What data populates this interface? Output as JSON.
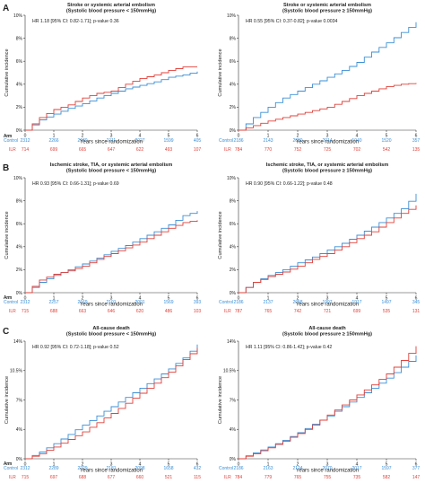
{
  "colors": {
    "control": "#3b8fd6",
    "ilr": "#e0413a",
    "axis": "#333333",
    "text": "#222222"
  },
  "chart_data": [
    {
      "type": "line",
      "panel_letter": "A",
      "title": "Stroke or systemic arterial embolism",
      "subtitle": "(Systolic blood pressure < 150mmHg)",
      "annotation": "HR 1.18 [95% CI: 0.82-1.71]; p-value 0.36",
      "xlabel": "Years since randomization",
      "ylabel": "Cumulative incidence",
      "xlim": [
        0,
        6
      ],
      "ylim": [
        0,
        10
      ],
      "xticks": [
        "0",
        "1",
        "2",
        "3",
        "4",
        "5",
        "6"
      ],
      "yticks": [
        "0%",
        "2%",
        "4%",
        "6%",
        "8%",
        "10%"
      ],
      "risk_table": {
        "header": "Arm",
        "times": [
          0,
          1,
          2,
          3,
          4,
          5,
          6
        ],
        "rows": [
          {
            "label": "Control",
            "values": [
              "2312",
              "2266",
              "2180",
              "2111",
              "2027",
              "1599",
              "405"
            ]
          },
          {
            "label": "ILR",
            "values": [
              "714",
              "699",
              "665",
              "647",
              "622",
              "493",
              "107"
            ]
          }
        ]
      },
      "series": [
        {
          "key": "Control",
          "values": [
            [
              0,
              0
            ],
            [
              0.5,
              0.9
            ],
            [
              1,
              1.4
            ],
            [
              1.5,
              1.9
            ],
            [
              2,
              2.3
            ],
            [
              2.5,
              2.8
            ],
            [
              3,
              3.2
            ],
            [
              3.5,
              3.6
            ],
            [
              4,
              3.9
            ],
            [
              4.5,
              4.2
            ],
            [
              5,
              4.6
            ],
            [
              5.5,
              4.8
            ],
            [
              6,
              5.1
            ]
          ]
        },
        {
          "key": "ILR",
          "values": [
            [
              0,
              0
            ],
            [
              0.5,
              1.1
            ],
            [
              1,
              1.8
            ],
            [
              1.5,
              2.2
            ],
            [
              2,
              2.8
            ],
            [
              2.5,
              3.2
            ],
            [
              3,
              3.4
            ],
            [
              3.5,
              4
            ],
            [
              4,
              4.5
            ],
            [
              4.5,
              4.8
            ],
            [
              5,
              5.2
            ],
            [
              5.5,
              5.5
            ],
            [
              6,
              5.5
            ]
          ]
        }
      ]
    },
    {
      "type": "line",
      "panel_letter": "",
      "title": "Stroke or systemic arterial embolism",
      "subtitle": "(Systolic blood pressure ≥ 150mmHg)",
      "annotation": "HR 0.55 [95% CI: 0.37-0.82]; p-value 0.0034",
      "xlabel": "Years since randomization",
      "ylabel": "Cumulative incidence",
      "xlim": [
        0,
        6
      ],
      "ylim": [
        0,
        10
      ],
      "xticks": [
        "0",
        "1",
        "2",
        "3",
        "4",
        "5",
        "6"
      ],
      "yticks": [
        "0%",
        "2%",
        "4%",
        "6%",
        "8%",
        "10%"
      ],
      "risk_table": {
        "header": "Arm",
        "times": [
          0,
          1,
          2,
          3,
          4,
          5,
          6
        ],
        "rows": [
          {
            "label": "Control",
            "values": [
              "2186",
              "2143",
              "2080",
              "2014",
              "1940",
              "1520",
              "357"
            ]
          },
          {
            "label": "ILR",
            "values": [
              "784",
              "770",
              "752",
              "725",
              "702",
              "542",
              "135"
            ]
          }
        ]
      },
      "series": [
        {
          "key": "Control",
          "values": [
            [
              0,
              0
            ],
            [
              0.5,
              1.1
            ],
            [
              1,
              2
            ],
            [
              1.5,
              2.8
            ],
            [
              2,
              3.4
            ],
            [
              2.5,
              4
            ],
            [
              3,
              4.6
            ],
            [
              3.5,
              5.2
            ],
            [
              4,
              5.9
            ],
            [
              4.5,
              6.8
            ],
            [
              5,
              7.6
            ],
            [
              5.5,
              8.5
            ],
            [
              6,
              9.4
            ]
          ]
        },
        {
          "key": "ILR",
          "values": [
            [
              0,
              0
            ],
            [
              0.5,
              0.4
            ],
            [
              1,
              0.8
            ],
            [
              1.5,
              1.1
            ],
            [
              2,
              1.4
            ],
            [
              2.5,
              1.7
            ],
            [
              3,
              2
            ],
            [
              3.5,
              2.5
            ],
            [
              4,
              3
            ],
            [
              4.5,
              3.4
            ],
            [
              5,
              3.8
            ],
            [
              5.5,
              4
            ],
            [
              6,
              4.1
            ]
          ]
        }
      ]
    },
    {
      "type": "line",
      "panel_letter": "B",
      "title": "Ischemic stroke, TIA, or systemic arterial embolism",
      "subtitle": "(Systolic blood pressure < 150mmHg)",
      "annotation": "HR 0.93 [95% CI: 0.66-1.31]; p-value 0.69",
      "xlabel": "Years since randomization",
      "ylabel": "Cumulative incidence",
      "xlim": [
        0,
        6
      ],
      "ylim": [
        0,
        10
      ],
      "xticks": [
        "0",
        "1",
        "2",
        "3",
        "4",
        "5",
        "6"
      ],
      "yticks": [
        "0%",
        "2%",
        "4%",
        "6%",
        "8%",
        "10%"
      ],
      "risk_table": {
        "header": "Arm",
        "times": [
          0,
          1,
          2,
          3,
          4,
          5,
          6
        ],
        "rows": [
          {
            "label": "Control",
            "values": [
              "2312",
              "2257",
              "2169",
              "2101",
              "2001",
              "1569",
              "393"
            ]
          },
          {
            "label": "ILR",
            "values": [
              "715",
              "688",
              "663",
              "646",
              "620",
              "486",
              "103"
            ]
          }
        ]
      },
      "series": [
        {
          "key": "Control",
          "values": [
            [
              0,
              0
            ],
            [
              0.5,
              0.9
            ],
            [
              1,
              1.5
            ],
            [
              1.5,
              2
            ],
            [
              2,
              2.5
            ],
            [
              2.5,
              3
            ],
            [
              3,
              3.6
            ],
            [
              3.5,
              4.1
            ],
            [
              4,
              4.7
            ],
            [
              4.5,
              5.3
            ],
            [
              5,
              5.9
            ],
            [
              5.5,
              6.7
            ],
            [
              6,
              7.1
            ]
          ]
        },
        {
          "key": "ILR",
          "values": [
            [
              0,
              0
            ],
            [
              0.5,
              1.1
            ],
            [
              1,
              1.6
            ],
            [
              1.5,
              1.9
            ],
            [
              2,
              2.3
            ],
            [
              2.5,
              2.9
            ],
            [
              3,
              3.4
            ],
            [
              3.5,
              3.9
            ],
            [
              4,
              4.4
            ],
            [
              4.5,
              5
            ],
            [
              5,
              5.6
            ],
            [
              5.5,
              6.1
            ],
            [
              6,
              6.3
            ]
          ]
        }
      ]
    },
    {
      "type": "line",
      "panel_letter": "",
      "title": "Ischemic stroke, TIA, or systemic arterial embolism",
      "subtitle": "(Systolic blood pressure ≥ 150mmHg)",
      "annotation": "HR 0.90 [95% CI: 0.66-1.22]; p-value 0.48",
      "xlabel": "Years since randomization",
      "ylabel": "Cumulative incidence",
      "xlim": [
        0,
        6
      ],
      "ylim": [
        0,
        10
      ],
      "xticks": [
        "0",
        "1",
        "2",
        "3",
        "4",
        "5",
        "6"
      ],
      "yticks": [
        "0%",
        "2%",
        "4%",
        "6%",
        "8%",
        "10%"
      ],
      "risk_table": {
        "header": "Arm",
        "times": [
          0,
          1,
          2,
          3,
          4,
          5,
          6
        ],
        "rows": [
          {
            "label": "Control",
            "values": [
              "2186",
              "2137",
              "2058",
              "1997",
              "1917",
              "1497",
              "345"
            ]
          },
          {
            "label": "ILR",
            "values": [
              "787",
              "765",
              "742",
              "721",
              "699",
              "535",
              "131"
            ]
          }
        ]
      },
      "series": [
        {
          "key": "Control",
          "values": [
            [
              0,
              0
            ],
            [
              0.5,
              0.9
            ],
            [
              1,
              1.5
            ],
            [
              1.5,
              2
            ],
            [
              2,
              2.6
            ],
            [
              2.5,
              3.1
            ],
            [
              3,
              3.7
            ],
            [
              3.5,
              4.3
            ],
            [
              4,
              5
            ],
            [
              4.5,
              5.7
            ],
            [
              5,
              6.5
            ],
            [
              5.5,
              7.3
            ],
            [
              6,
              8.6
            ]
          ]
        },
        {
          "key": "ILR",
          "values": [
            [
              0,
              0
            ],
            [
              0.5,
              0.9
            ],
            [
              1,
              1.4
            ],
            [
              1.5,
              1.8
            ],
            [
              2,
              2.3
            ],
            [
              2.5,
              2.9
            ],
            [
              3,
              3.4
            ],
            [
              3.5,
              4
            ],
            [
              4,
              4.7
            ],
            [
              4.5,
              5.3
            ],
            [
              5,
              6.1
            ],
            [
              5.5,
              6.9
            ],
            [
              6,
              7.6
            ]
          ]
        }
      ]
    },
    {
      "type": "line",
      "panel_letter": "C",
      "title": "All-cause death",
      "subtitle": "(Systolic blood pressure < 150mmHg)",
      "annotation": "HR 0.92 [95% CI: 0.72-1.18]; p-value 0.52",
      "xlabel": "Years since randomization",
      "ylabel": "Cumulative incidence",
      "xlim": [
        0,
        6
      ],
      "ylim": [
        0,
        14
      ],
      "xticks": [
        "0",
        "1",
        "2",
        "3",
        "4",
        "5",
        "6"
      ],
      "yticks": [
        "0%",
        "4%",
        "7%",
        "10.5%",
        "14%"
      ],
      "ytick_values": [
        0,
        3.5,
        7,
        10.5,
        14
      ],
      "risk_table": {
        "header": "Arm",
        "times": [
          0,
          1,
          2,
          3,
          4,
          5,
          6
        ],
        "rows": [
          {
            "label": "Control",
            "values": [
              "2312",
              "2289",
              "2229",
              "2181",
              "2098",
              "1658",
              "432"
            ]
          },
          {
            "label": "ILR",
            "values": [
              "715",
              "697",
              "688",
              "677",
              "660",
              "521",
              "115"
            ]
          }
        ]
      },
      "series": [
        {
          "key": "Control",
          "values": [
            [
              0,
              0
            ],
            [
              0.5,
              0.8
            ],
            [
              1,
              1.8
            ],
            [
              1.5,
              2.9
            ],
            [
              2,
              4
            ],
            [
              2.5,
              5.1
            ],
            [
              3,
              6.2
            ],
            [
              3.5,
              7.3
            ],
            [
              4,
              8.4
            ],
            [
              4.5,
              9.5
            ],
            [
              5,
              10.7
            ],
            [
              5.5,
              12
            ],
            [
              6,
              13.6
            ]
          ]
        },
        {
          "key": "ILR",
          "values": [
            [
              0,
              0
            ],
            [
              0.5,
              0.6
            ],
            [
              1,
              1.4
            ],
            [
              1.5,
              2.3
            ],
            [
              2,
              3.2
            ],
            [
              2.5,
              4.3
            ],
            [
              3,
              5.4
            ],
            [
              3.5,
              6.6
            ],
            [
              4,
              7.8
            ],
            [
              4.5,
              9
            ],
            [
              5,
              10.3
            ],
            [
              5.5,
              11.8
            ],
            [
              6,
              13.2
            ]
          ]
        }
      ]
    },
    {
      "type": "line",
      "panel_letter": "",
      "title": "All-cause death",
      "subtitle": "(Systolic blood pressure ≥ 150mmHg)",
      "annotation": "HR 1.11 [95% CI: 0.86-1.42]; p-value 0.42",
      "xlabel": "Years since randomization",
      "ylabel": "Cumulative incidence",
      "xlim": [
        0,
        6
      ],
      "ylim": [
        0,
        14
      ],
      "xticks": [
        "0",
        "1",
        "2",
        "3",
        "4",
        "5",
        "6"
      ],
      "yticks": [
        "0%",
        "4%",
        "7%",
        "10.5%",
        "14%"
      ],
      "ytick_values": [
        0,
        3.5,
        7,
        10.5,
        14
      ],
      "risk_table": {
        "header": "Arm",
        "times": [
          0,
          1,
          2,
          3,
          4,
          5,
          6
        ],
        "rows": [
          {
            "label": "Control",
            "values": [
              "2186",
              "2163",
              "2124",
              "2070",
              "2017",
              "1597",
              "377"
            ]
          },
          {
            "label": "ILR",
            "values": [
              "784",
              "779",
              "765",
              "755",
              "735",
              "582",
              "147"
            ]
          }
        ]
      },
      "series": [
        {
          "key": "Control",
          "values": [
            [
              0,
              0
            ],
            [
              0.5,
              0.7
            ],
            [
              1,
              1.4
            ],
            [
              1.5,
              2.2
            ],
            [
              2,
              3.1
            ],
            [
              2.5,
              4.1
            ],
            [
              3,
              5.1
            ],
            [
              3.5,
              6.2
            ],
            [
              4,
              7.3
            ],
            [
              4.5,
              8.4
            ],
            [
              5,
              9.6
            ],
            [
              5.5,
              10.9
            ],
            [
              6,
              12.3
            ]
          ]
        },
        {
          "key": "ILR",
          "values": [
            [
              0,
              0
            ],
            [
              0.5,
              0.6
            ],
            [
              1,
              1.3
            ],
            [
              1.5,
              2.1
            ],
            [
              2,
              3
            ],
            [
              2.5,
              4
            ],
            [
              3,
              5.2
            ],
            [
              3.5,
              6.4
            ],
            [
              4,
              7.6
            ],
            [
              4.5,
              8.8
            ],
            [
              5,
              10.1
            ],
            [
              5.5,
              11.7
            ],
            [
              6,
              13.4
            ]
          ]
        }
      ]
    }
  ]
}
